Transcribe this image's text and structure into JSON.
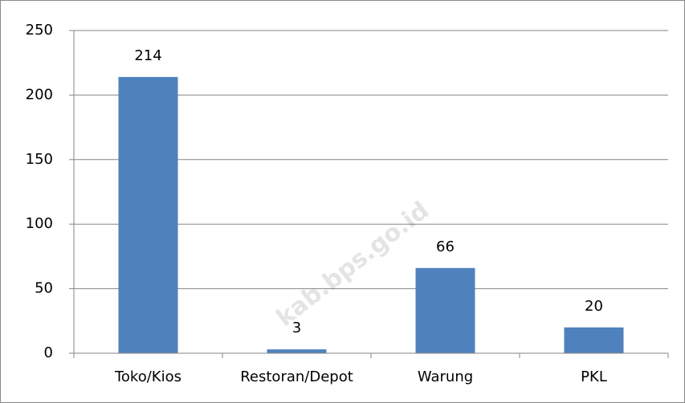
{
  "chart_data": {
    "type": "bar",
    "categories": [
      "Toko/Kios",
      "Restoran/Depot",
      "Warung",
      "PKL"
    ],
    "values": [
      214,
      3,
      66,
      20
    ],
    "color": "#4f81bd",
    "ylim": [
      0,
      250
    ],
    "yticks": [
      0,
      50,
      100,
      150,
      200,
      250
    ],
    "grid": true,
    "data_labels": true,
    "watermark": "kab.bps.go.id"
  }
}
